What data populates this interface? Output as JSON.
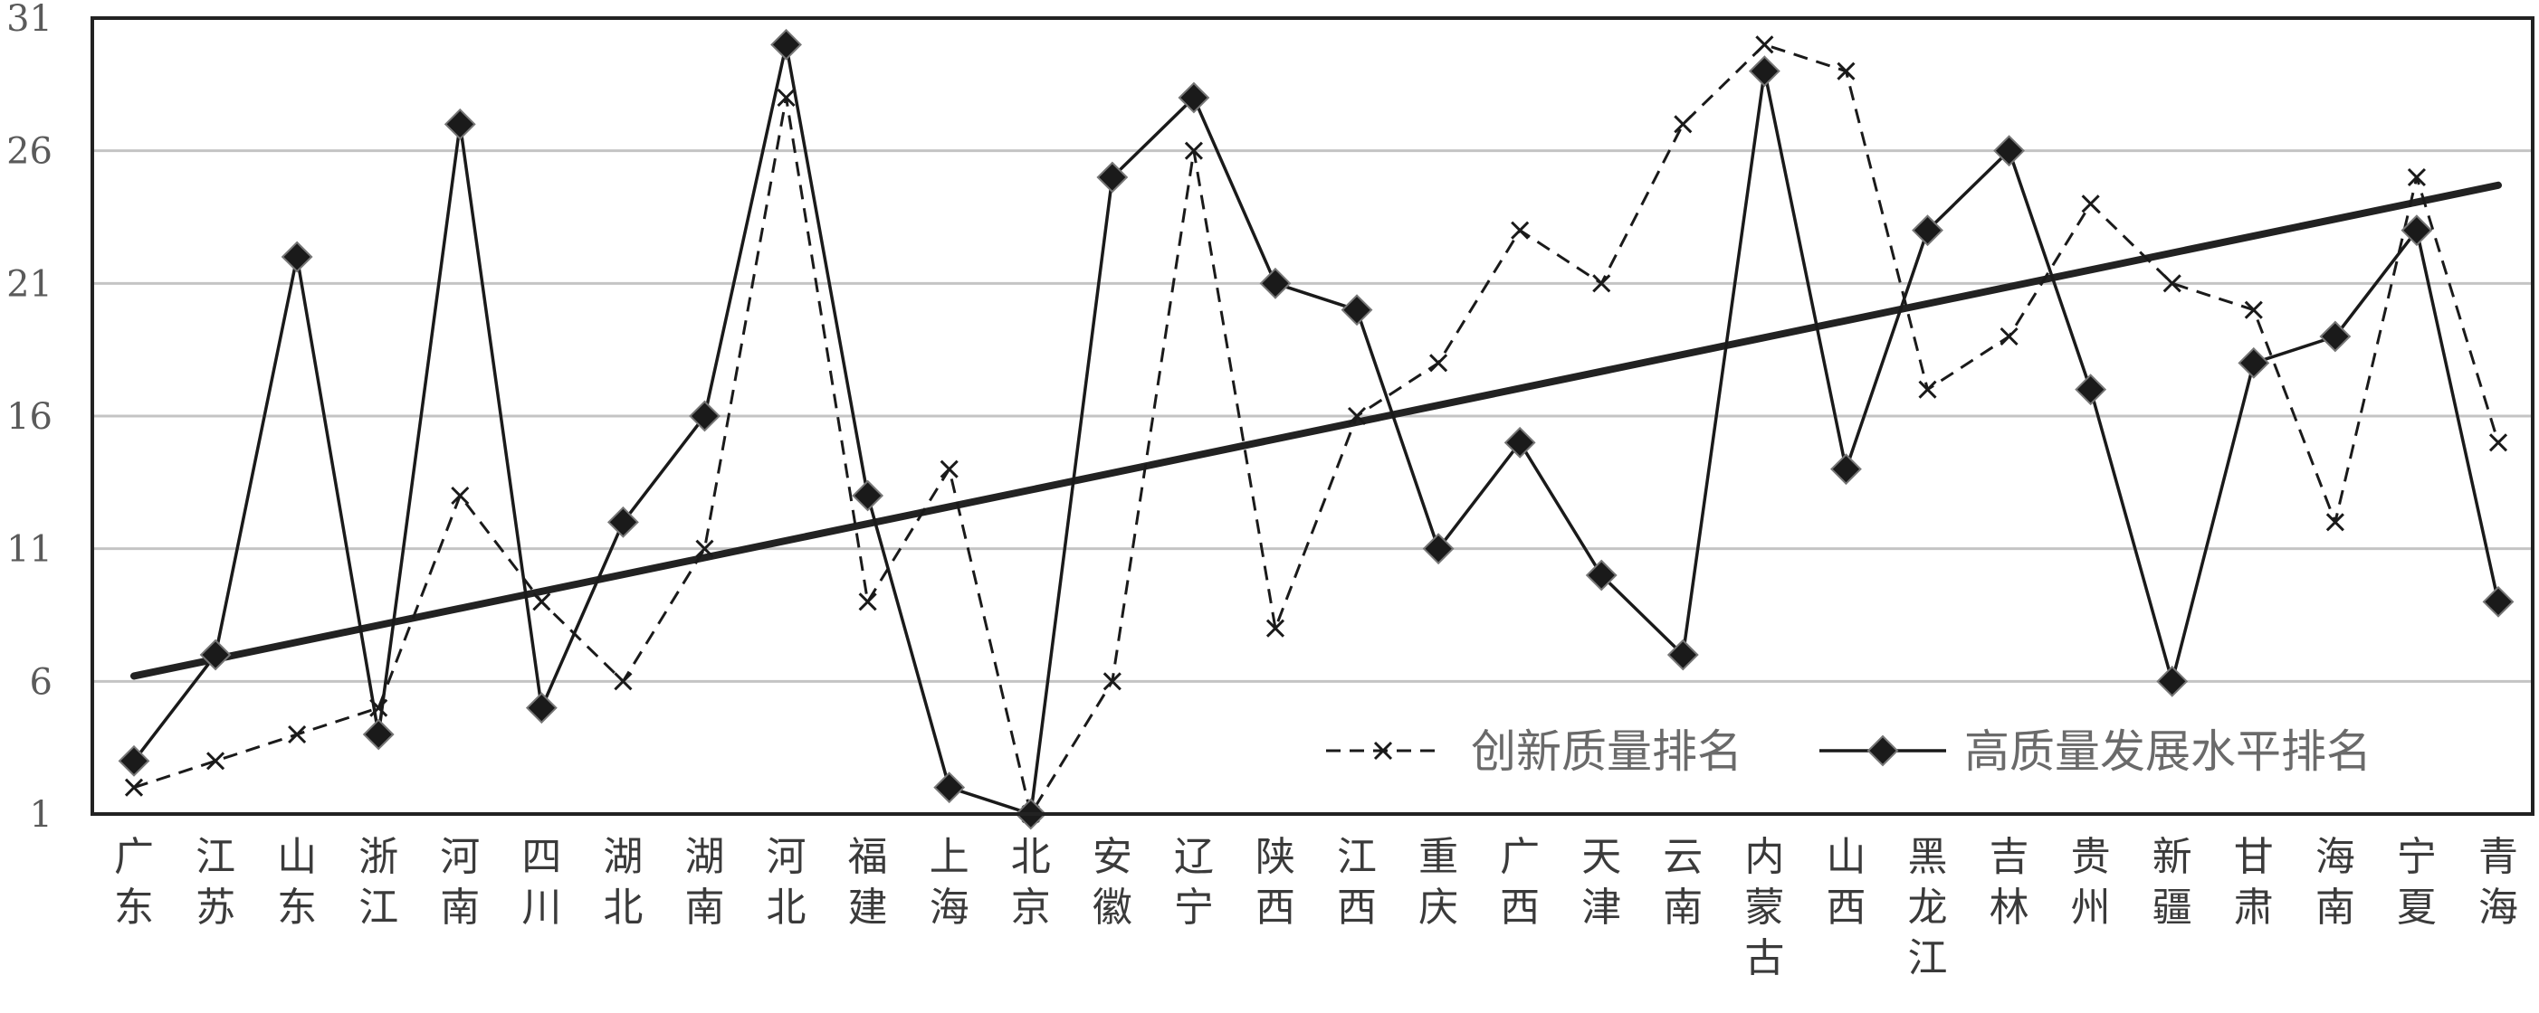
{
  "chart_data": {
    "type": "line",
    "title": "",
    "xlabel": "",
    "ylabel": "",
    "ylim": [
      1,
      31
    ],
    "yticks": [
      1,
      6,
      11,
      16,
      21,
      26,
      31
    ],
    "grid": "horizontal",
    "legend_position": "bottom-right",
    "categories": [
      "广东",
      "江苏",
      "山东",
      "浙江",
      "河南",
      "四川",
      "湖北",
      "湖南",
      "河北",
      "福建",
      "上海",
      "北京",
      "安徽",
      "辽宁",
      "陕西",
      "江西",
      "重庆",
      "广西",
      "天津",
      "云南",
      "内蒙古",
      "山西",
      "黑龙江",
      "吉林",
      "贵州",
      "新疆",
      "甘肃",
      "海南",
      "宁夏",
      "青海"
    ],
    "series": [
      {
        "name": "创新质量排名",
        "style": "dashed-x",
        "color": "#1a1a1a",
        "values": [
          2,
          3,
          4,
          5,
          13,
          9,
          6,
          11,
          28,
          9,
          14,
          1,
          6,
          26,
          8,
          16,
          18,
          23,
          21,
          27,
          30,
          29,
          17,
          19,
          24,
          21,
          20,
          12,
          25,
          15
        ]
      },
      {
        "name": "高质量发展水平排名",
        "style": "solid-diamond",
        "color": "#1a1a1a",
        "values": [
          3,
          7,
          22,
          4,
          27,
          5,
          12,
          16,
          30,
          13,
          2,
          1,
          25,
          28,
          21,
          20,
          11,
          15,
          10,
          7,
          29,
          14,
          23,
          26,
          17,
          6,
          18,
          19,
          23,
          9
        ]
      }
    ],
    "trendline": {
      "start": 6.2,
      "end": 24.7,
      "color": "#222222"
    }
  }
}
